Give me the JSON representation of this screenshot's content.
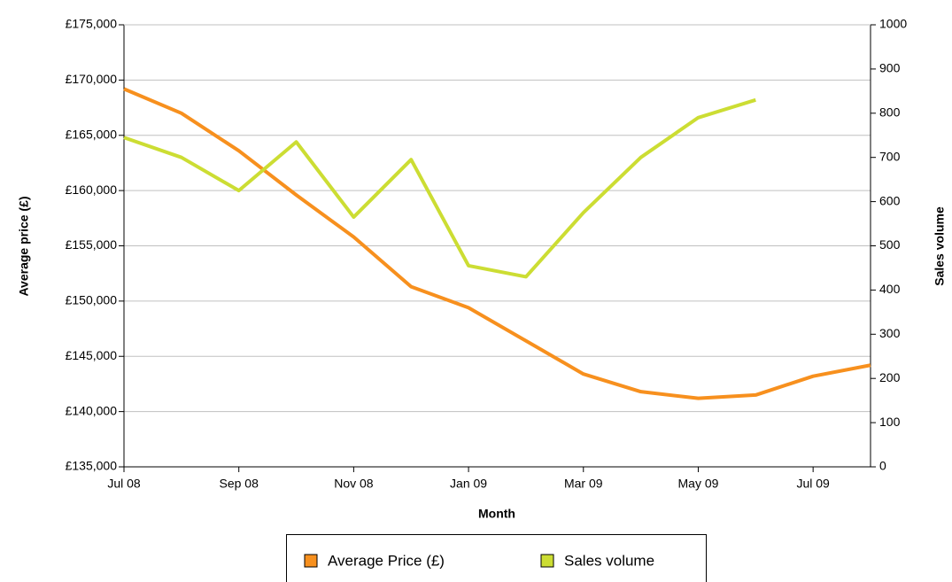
{
  "chart_data": {
    "type": "line",
    "x_label": "Month",
    "y_label": "Average price (£)",
    "y2_label": "Sales volume",
    "categories": [
      "Jul 08",
      null,
      "Sep 08",
      null,
      "Nov 08",
      null,
      "Jan 09",
      null,
      "Mar 09",
      null,
      "May 09",
      null,
      "Jul 09",
      null
    ],
    "series": [
      {
        "name": "Average Price (£)",
        "color": "#f7901e",
        "values": [
          169200,
          167000,
          163600,
          159600,
          155800,
          151300,
          149400,
          146400,
          143400,
          141800,
          141200,
          141500,
          143200,
          144200
        ]
      },
      {
        "name": "Sales volume",
        "color": "#ccdd33",
        "axis": "y2",
        "values": [
          745,
          700,
          625,
          735,
          565,
          695,
          455,
          430,
          575,
          700,
          790,
          830,
          null,
          null
        ]
      }
    ],
    "ylim": [
      135000,
      175000
    ],
    "yticks": [
      {
        "value": 135000,
        "label": "£135,000"
      },
      {
        "value": 140000,
        "label": "£140,000"
      },
      {
        "value": 145000,
        "label": "£145,000"
      },
      {
        "value": 150000,
        "label": "£150,000"
      },
      {
        "value": 155000,
        "label": "£155,000"
      },
      {
        "value": 160000,
        "label": "£160,000"
      },
      {
        "value": 165000,
        "label": "£165,000"
      },
      {
        "value": 170000,
        "label": "£170,000"
      },
      {
        "value": 175000,
        "label": "£175,000"
      }
    ],
    "y2lim": [
      0,
      1000
    ],
    "y2ticks": [
      0,
      100,
      200,
      300,
      400,
      500,
      600,
      700,
      800,
      900,
      1000
    ],
    "grid": true,
    "legend": "bottom"
  }
}
